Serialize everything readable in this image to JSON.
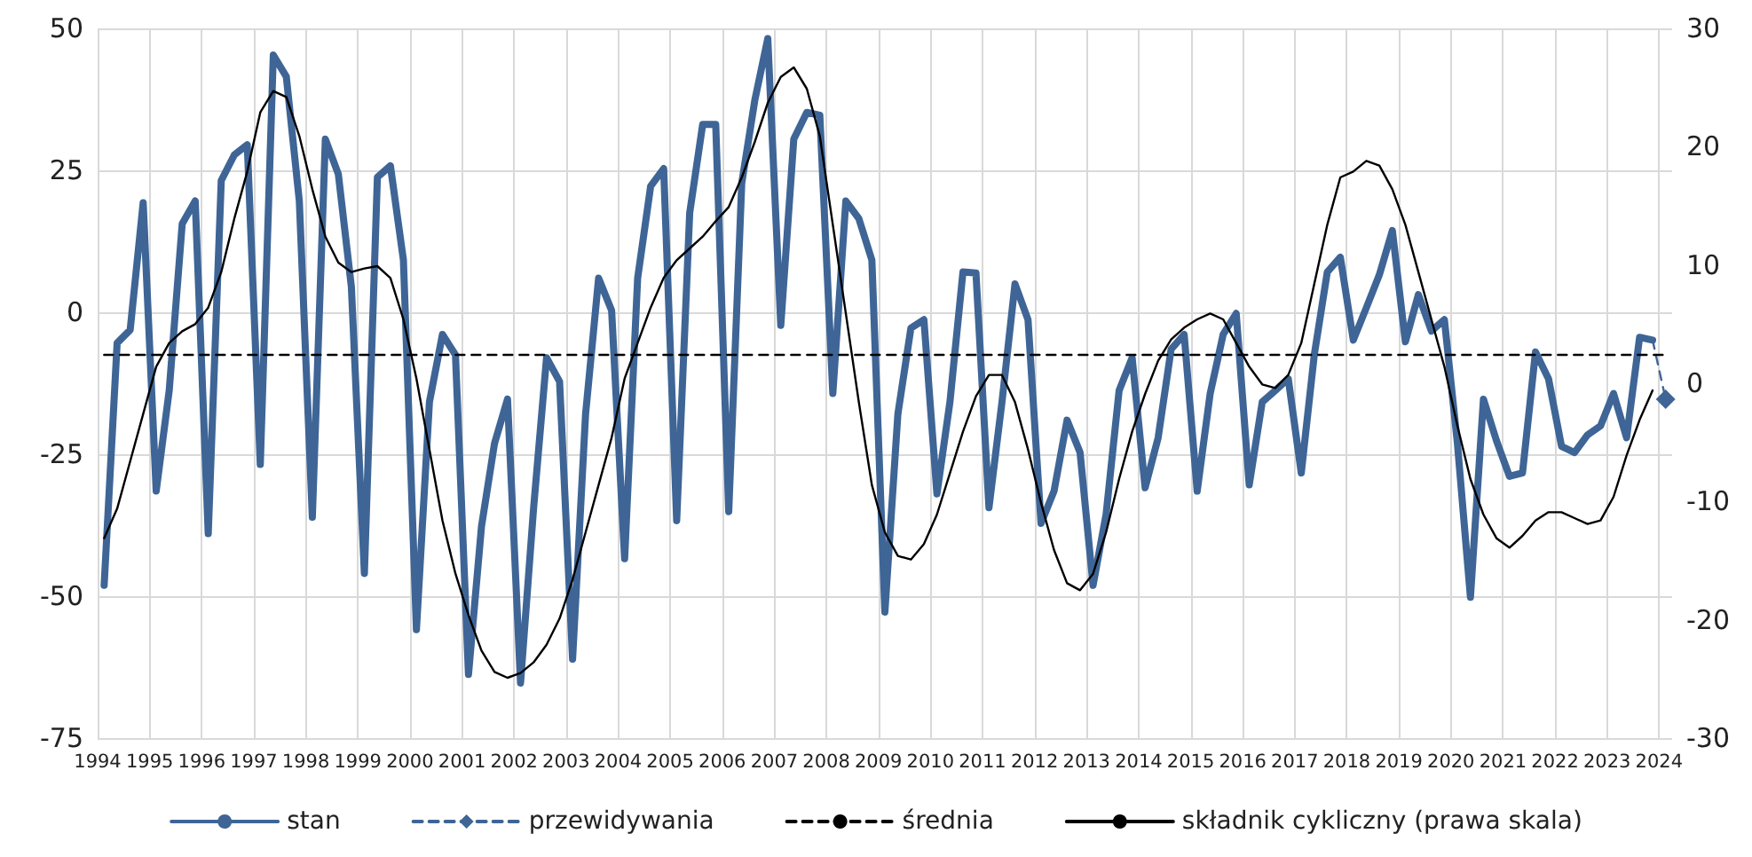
{
  "chart_data": {
    "type": "line",
    "x": [
      1994.125,
      1994.375,
      1994.625,
      1994.875,
      1995.125,
      1995.375,
      1995.625,
      1995.875,
      1996.125,
      1996.375,
      1996.625,
      1996.875,
      1997.125,
      1997.375,
      1997.625,
      1997.875,
      1998.125,
      1998.375,
      1998.625,
      1998.875,
      1999.125,
      1999.375,
      1999.625,
      1999.875,
      2000.125,
      2000.375,
      2000.625,
      2000.875,
      2001.125,
      2001.375,
      2001.625,
      2001.875,
      2002.125,
      2002.375,
      2002.625,
      2002.875,
      2003.125,
      2003.375,
      2003.625,
      2003.875,
      2004.125,
      2004.375,
      2004.625,
      2004.875,
      2005.125,
      2005.375,
      2005.625,
      2005.875,
      2006.125,
      2006.375,
      2006.625,
      2006.875,
      2007.125,
      2007.375,
      2007.625,
      2007.875,
      2008.125,
      2008.375,
      2008.625,
      2008.875,
      2009.125,
      2009.375,
      2009.625,
      2009.875,
      2010.125,
      2010.375,
      2010.625,
      2010.875,
      2011.125,
      2011.375,
      2011.625,
      2011.875,
      2012.125,
      2012.375,
      2012.625,
      2012.875,
      2013.125,
      2013.375,
      2013.625,
      2013.875,
      2014.125,
      2014.375,
      2014.625,
      2014.875,
      2015.125,
      2015.375,
      2015.625,
      2015.875,
      2016.125,
      2016.375,
      2016.625,
      2016.875,
      2017.125,
      2017.375,
      2017.625,
      2017.875,
      2018.125,
      2018.375,
      2018.625,
      2018.875,
      2019.125,
      2019.375,
      2019.625,
      2019.875,
      2020.125,
      2020.375,
      2020.625,
      2020.875,
      2021.125,
      2021.375,
      2021.625,
      2021.875,
      2022.125,
      2022.375,
      2022.625,
      2022.875,
      2023.125,
      2023.375,
      2023.625,
      2023.875
    ],
    "series": [
      {
        "name": "stan",
        "color": "#3e6596",
        "values": [
          -48.1,
          -5.4,
          -3.1,
          19.3,
          -31.5,
          -13.8,
          15.6,
          19.6,
          -39,
          23.2,
          27.7,
          29.5,
          -26.8,
          45.3,
          41.5,
          19.6,
          -36.1,
          30.5,
          24.3,
          4.5,
          -46,
          23.8,
          25.8,
          9.2,
          -55.9,
          -15.8,
          -3.9,
          -7.5,
          -63.8,
          -37.7,
          -23.1,
          -15.3,
          -65.3,
          -34.6,
          -8,
          -12.2,
          -61.1,
          -17.9,
          6,
          0.3,
          -43.4,
          6,
          22.2,
          25.3,
          -36.7,
          17.5,
          33.1,
          33.1,
          -35.1,
          22.7,
          37.3,
          48.2,
          -2.3,
          30.5,
          35.2,
          34.7,
          -14.3,
          19.6,
          16.5,
          9.2,
          -52.8,
          -17.9,
          -2.8,
          -1.3,
          -32,
          -15.8,
          7.1,
          6.9,
          -34.4,
          -15.8,
          5,
          -1.3,
          -37.2,
          -31.5,
          -19,
          -24.7,
          -48.1,
          -35.6,
          -13.8,
          -8,
          -30.9,
          -22.1,
          -6.5,
          -3.9,
          -31.5,
          -14.3,
          -3.9,
          -0.2,
          -30.4,
          -15.8,
          -13.8,
          -11.7,
          -28.3,
          -7.5,
          7.1,
          9.7,
          -4.9,
          0.8,
          6.6,
          14.4,
          -5.2,
          3.1,
          -3.3,
          -1.3,
          -23.1,
          -50.2,
          -15.3,
          -22.6,
          -28.9,
          -28.3,
          -7,
          -11.7,
          -23.6,
          -24.7,
          -21.6,
          -20,
          -14.3,
          -22.1,
          -4.4,
          -4.9
        ]
      },
      {
        "name": "przewidywania",
        "color": "#3e6596",
        "x": [
          2023.875,
          2024.125
        ],
        "values": [
          -4.9,
          -15.3
        ],
        "line_style": "dashed",
        "marker": "diamond"
      },
      {
        "name": "średnia",
        "color": "#000000",
        "x": [
          1994.125,
          2024.125
        ],
        "values": [
          -7.5,
          -7.5
        ],
        "line_style": "dashed"
      },
      {
        "name": "składnik cykliczny (prawa skala)",
        "color": "#000000",
        "axis": "y2",
        "values": [
          -13.1,
          -10.6,
          -6.6,
          -2.6,
          1.4,
          3.4,
          4.4,
          5,
          6.4,
          9.4,
          13.9,
          17.9,
          22.9,
          24.7,
          24.2,
          20.9,
          16.4,
          12.4,
          10.2,
          9.4,
          9.7,
          9.9,
          8.9,
          5.4,
          0.4,
          -5.6,
          -11.6,
          -16.1,
          -19.6,
          -22.6,
          -24.4,
          -24.9,
          -24.5,
          -23.6,
          -22.1,
          -19.9,
          -16.6,
          -12.6,
          -8.6,
          -4.6,
          0.4,
          3.4,
          6.4,
          8.9,
          10.4,
          11.4,
          12.4,
          13.7,
          14.9,
          17.4,
          20.4,
          23.7,
          25.9,
          26.7,
          24.9,
          20.9,
          13.4,
          5.9,
          -1.6,
          -8.6,
          -12.6,
          -14.6,
          -14.9,
          -13.6,
          -11.1,
          -7.6,
          -4.1,
          -1.1,
          0.7,
          0.7,
          -1.6,
          -5.6,
          -10.1,
          -14.1,
          -16.9,
          -17.5,
          -16.1,
          -12.6,
          -8.1,
          -4.1,
          -0.9,
          1.9,
          3.7,
          4.7,
          5.4,
          5.9,
          5.4,
          3.4,
          1.4,
          -0.1,
          -0.4,
          0.7,
          3.4,
          8.4,
          13.4,
          17.4,
          17.9,
          18.8,
          18.4,
          16.4,
          13.4,
          9.4,
          5.4,
          1.4,
          -3.6,
          -8.1,
          -11.1,
          -13.1,
          -13.9,
          -12.9,
          -11.6,
          -10.9,
          -10.9,
          -11.4,
          -11.9,
          -11.6,
          -9.6,
          -6.1,
          -3.1,
          -0.6
        ]
      }
    ],
    "xlim": [
      1994,
      2024.25
    ],
    "xticks": [
      1994,
      1995,
      1996,
      1997,
      1998,
      1999,
      2000,
      2001,
      2002,
      2003,
      2004,
      2005,
      2006,
      2007,
      2008,
      2009,
      2010,
      2011,
      2012,
      2013,
      2014,
      2015,
      2016,
      2017,
      2018,
      2019,
      2020,
      2021,
      2022,
      2023,
      2024
    ],
    "ylim": [
      -75,
      50
    ],
    "yticks": [
      -75,
      -50,
      -25,
      0,
      25,
      50
    ],
    "y2lim": [
      -30,
      30
    ],
    "y2ticks": [
      -30,
      -20,
      -10,
      0,
      10,
      20,
      30
    ],
    "grid": true,
    "legend": "bottom",
    "marker": "none",
    "line_style": "solid"
  }
}
